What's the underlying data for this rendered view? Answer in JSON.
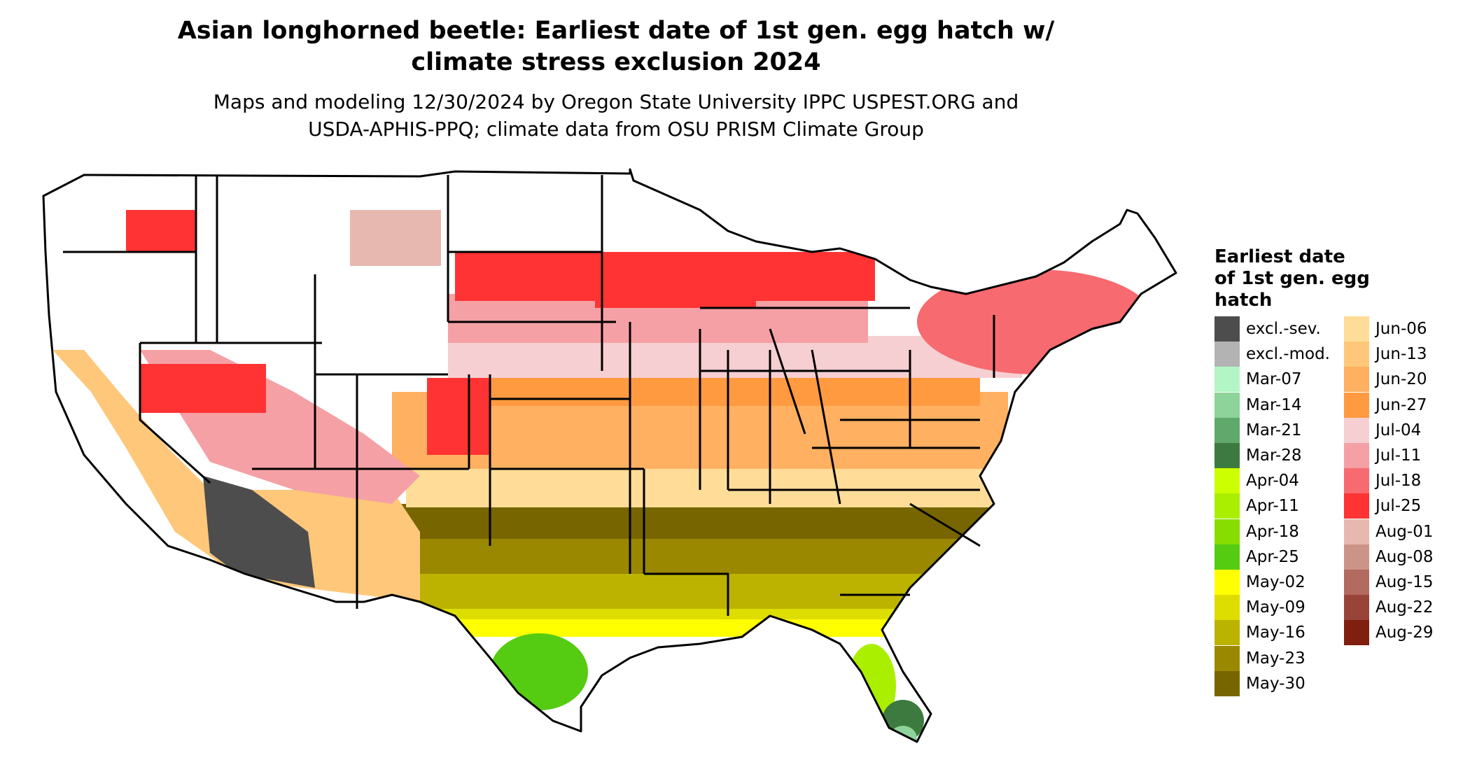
{
  "title_line1": "Asian longhorned beetle: Earliest date of 1st gen. egg hatch w/",
  "title_line2": "climate stress exclusion 2024",
  "subtitle_line1": "Maps and modeling 12/30/2024 by Oregon State University IPPC USPEST.ORG and",
  "subtitle_line2": "USDA-APHIS-PPQ; climate data from OSU PRISM Climate Group",
  "legend": {
    "title_line1": "Earliest date",
    "title_line2": "of 1st gen. egg",
    "title_line3": "hatch",
    "column1": [
      {
        "label": "excl.-sev.",
        "color": "#4d4d4d"
      },
      {
        "label": "excl.-mod.",
        "color": "#b3b3b3"
      },
      {
        "label": "Mar-07",
        "color": "#b3f5c4"
      },
      {
        "label": "Mar-14",
        "color": "#8ed39a"
      },
      {
        "label": "Mar-21",
        "color": "#5faa6a"
      },
      {
        "label": "Mar-28",
        "color": "#3c7a3f"
      },
      {
        "label": "Apr-04",
        "color": "#ccff00"
      },
      {
        "label": "Apr-11",
        "color": "#aaee00"
      },
      {
        "label": "Apr-18",
        "color": "#88dd00"
      },
      {
        "label": "Apr-25",
        "color": "#55cc11"
      },
      {
        "label": "May-02",
        "color": "#ffff00"
      },
      {
        "label": "May-09",
        "color": "#dddd00"
      },
      {
        "label": "May-16",
        "color": "#bbb300"
      },
      {
        "label": "May-23",
        "color": "#998800"
      },
      {
        "label": "May-30",
        "color": "#776600"
      }
    ],
    "column2": [
      {
        "label": "Jun-06",
        "color": "#ffdd99"
      },
      {
        "label": "Jun-13",
        "color": "#ffc77a"
      },
      {
        "label": "Jun-20",
        "color": "#ffb060"
      },
      {
        "label": "Jun-27",
        "color": "#ff9a40"
      },
      {
        "label": "Jul-04",
        "color": "#f5cfd2"
      },
      {
        "label": "Jul-11",
        "color": "#f5a0a5"
      },
      {
        "label": "Jul-18",
        "color": "#f76b70"
      },
      {
        "label": "Jul-25",
        "color": "#ff3333"
      },
      {
        "label": "Aug-01",
        "color": "#e6b8b0"
      },
      {
        "label": "Aug-08",
        "color": "#cc9488"
      },
      {
        "label": "Aug-15",
        "color": "#b36a60"
      },
      {
        "label": "Aug-22",
        "color": "#994438"
      },
      {
        "label": "Aug-29",
        "color": "#801e10"
      }
    ]
  }
}
